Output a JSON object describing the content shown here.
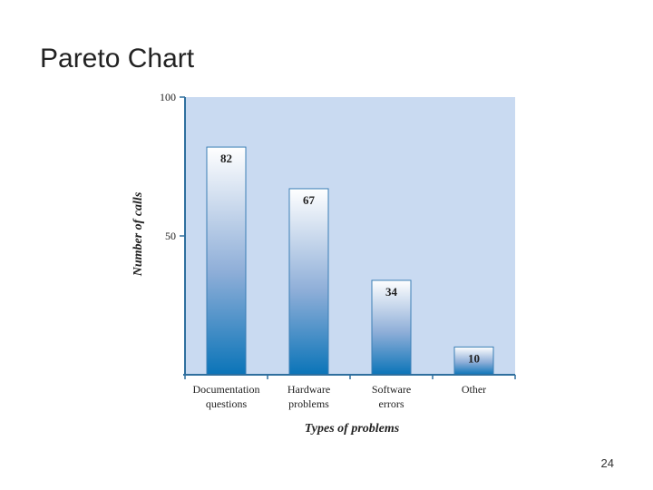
{
  "slide": {
    "title": "Pareto Chart",
    "page_number": "24"
  },
  "colors": {
    "plot_background": "#c9daf1",
    "axis": "#2f6f9e",
    "bar_top": "#ffffff",
    "bar_mid": "#8eaed8",
    "bar_bottom": "#0a74b8",
    "bar_stroke": "#3b7fb5",
    "text": "#222222"
  },
  "chart_data": {
    "type": "bar",
    "title": "",
    "xlabel": "Types of problems",
    "ylabel": "Number of calls",
    "categories": [
      [
        "Documentation",
        "questions"
      ],
      [
        "Hardware",
        "problems"
      ],
      [
        "Software",
        "errors"
      ],
      [
        "Other"
      ]
    ],
    "values": [
      82,
      67,
      34,
      10
    ],
    "data_labels": [
      "82",
      "67",
      "34",
      "10"
    ],
    "ylim": [
      0,
      100
    ],
    "yticks": [
      50,
      100
    ],
    "ytick_labels": [
      "50",
      "100"
    ],
    "grid": false
  }
}
